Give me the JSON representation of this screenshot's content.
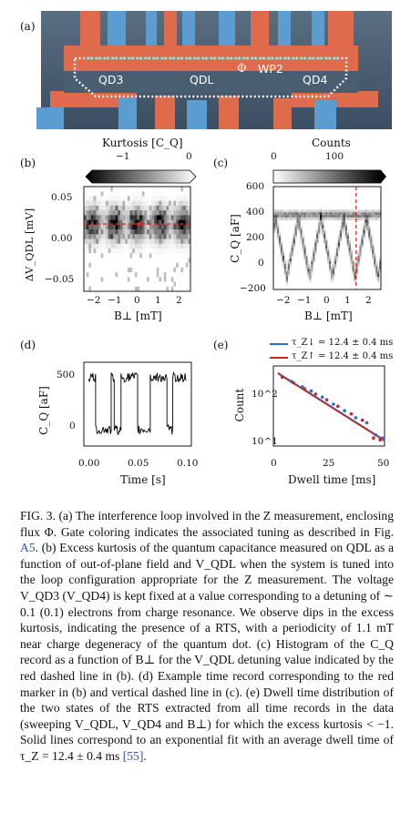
{
  "panel_labels": {
    "a": "(a)",
    "b": "(b)",
    "c": "(c)",
    "d": "(d)",
    "e": "(e)"
  },
  "device": {
    "qd3": "QD3",
    "qdl": "QDL",
    "phi": "Φ",
    "wp2": "WP2",
    "qd4": "QD4"
  },
  "colors": {
    "gate_red": "#e06a4c",
    "gate_blue": "#5b9cd1",
    "device_bg": "#4a5e72",
    "loop": "#f4f4f4",
    "qdl_line": "#58e0c8",
    "marker_red": "#d22b2b",
    "fit_blue": "#2a73c2",
    "fit_red": "#c62828"
  },
  "chart_data": [
    {
      "id": "b",
      "type": "heatmap",
      "colorbar_label": "Kurtosis [C_Q]",
      "colorbar_ticks": [
        "−1",
        "0"
      ],
      "xlabel": "B⊥ [mT]",
      "ylabel": "ΔV_QDL [mV]",
      "xticks": [
        "−2",
        "−1",
        "0",
        "1",
        "2"
      ],
      "yticks": [
        "0.05",
        "0.00",
        "−0.05"
      ],
      "xlim": [
        -2.6,
        2.6
      ],
      "ylim": [
        -0.07,
        0.07
      ],
      "marker_y": 0.02,
      "dip_period_mT": 1.1
    },
    {
      "id": "c",
      "type": "heatmap",
      "colorbar_label": "Counts",
      "colorbar_ticks": [
        "0",
        "100"
      ],
      "xlabel": "B⊥ [mT]",
      "ylabel": "C_Q [aF]",
      "xticks": [
        "−2",
        "−1",
        "0",
        "1",
        "2"
      ],
      "yticks": [
        "600",
        "400",
        "200",
        "0",
        "−200"
      ],
      "xlim": [
        -2.6,
        2.6
      ],
      "ylim": [
        -200,
        600
      ],
      "vline_x": 1.4
    },
    {
      "id": "d",
      "type": "line",
      "xlabel": "Time [s]",
      "ylabel": "C_Q [aF]",
      "xticks": [
        "0.00",
        "0.05",
        "0.10"
      ],
      "yticks": [
        "500",
        "0"
      ],
      "xlim": [
        -0.005,
        0.105
      ],
      "ylim": [
        -150,
        620
      ],
      "segments": [
        [
          0.0,
          0.007,
          "high"
        ],
        [
          0.007,
          0.023,
          "low"
        ],
        [
          0.023,
          0.026,
          "high"
        ],
        [
          0.026,
          0.033,
          "low"
        ],
        [
          0.033,
          0.05,
          "high"
        ],
        [
          0.05,
          0.063,
          "low"
        ],
        [
          0.063,
          0.08,
          "high"
        ],
        [
          0.08,
          0.086,
          "low"
        ],
        [
          0.086,
          0.1,
          "high"
        ]
      ],
      "levels": {
        "high": 480,
        "low": 0
      }
    },
    {
      "id": "e",
      "type": "scatter",
      "xlabel": "Dwell time [ms]",
      "ylabel": "Count",
      "xticks": [
        "0",
        "25",
        "50"
      ],
      "yticks": [
        "10^2",
        "10^1"
      ],
      "xlim": [
        0,
        50
      ],
      "ylim_log10": [
        0.8,
        2.8
      ],
      "legend": [
        {
          "label": "τ_Z↓ = 12.4 ± 0.4 ms",
          "color": "#2a73c2"
        },
        {
          "label": "τ_Z↑ = 12.4 ± 0.4 ms",
          "color": "#c62828"
        }
      ],
      "series": [
        {
          "name": "Z↓",
          "x": [
            4,
            8,
            13,
            17,
            22,
            27,
            32,
            37,
            42,
            46,
            49
          ],
          "y": [
            340,
            260,
            190,
            150,
            105,
            70,
            48,
            32,
            24,
            12,
            10
          ]
        },
        {
          "name": "Z↑",
          "x": [
            4,
            9,
            14,
            19,
            24,
            29,
            35,
            40,
            45,
            48
          ],
          "y": [
            330,
            240,
            170,
            125,
            90,
            62,
            40,
            28,
            10,
            9
          ]
        }
      ],
      "fit": {
        "A": 500,
        "tau": 12.4
      }
    }
  ],
  "caption": {
    "fig": "FIG. 3.",
    "text": "(a) The interference loop involved in the Z measurement, enclosing flux Φ. Gate coloring indicates the associated tuning as described in Fig.",
    "ref1": "A5",
    "text2": ". (b) Excess kurtosis of the quantum capacitance measured on QDL as a function of out-of-plane field and V_QDL when the system is tuned into the loop configuration appropriate for the Z measurement. The voltage V_QD3 (V_QD4) is kept fixed at a value corresponding to a detuning of ∼ 0.1 (0.1) electrons from charge resonance. We observe dips in the excess kurtosis, indicating the presence of a RTS, with a periodicity of 1.1 mT near charge degeneracy of the quantum dot. (c) Histogram of the C_Q record as a function of B⊥ for the V_QDL detuning value indicated by the red dashed line in (b). (d) Example time record corresponding to the red marker in (b) and vertical dashed line in (c). (e) Dwell time distribution of the two states of the RTS extracted from all time records in the data (sweeping V_QDL, V_QD4 and B⊥) for which the excess kurtosis < −1. Solid lines correspond to an exponential fit with an average dwell time of τ_Z = 12.4 ± 0.4 ms",
    "ref2": "[55]",
    "end": "."
  }
}
